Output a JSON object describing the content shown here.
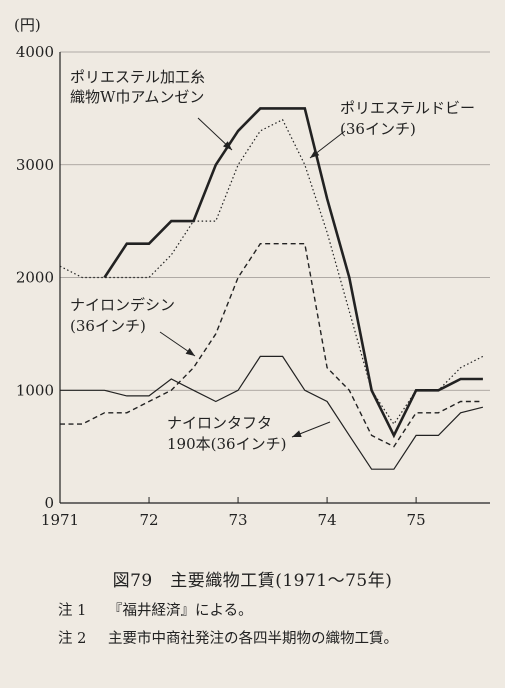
{
  "chart_data": {
    "type": "line",
    "ylabel": "(円)",
    "xlim": [
      1971,
      1975.83
    ],
    "ylim": [
      0,
      4000
    ],
    "yticks": [
      0,
      1000,
      2000,
      3000,
      4000
    ],
    "ytick_labels": [
      "0",
      "1000",
      "2000",
      "3000",
      "4000"
    ],
    "xticks": [
      1971,
      1972,
      1973,
      1974,
      1975
    ],
    "xtick_labels": [
      "1971",
      "72",
      "73",
      "74",
      "75"
    ],
    "grid": "horizontal",
    "series": [
      {
        "name": "ポリエステル加工糸織物W巾アムンゼン",
        "style": "thick-solid",
        "x": [
          1971.5,
          1971.75,
          1972.0,
          1972.25,
          1972.5,
          1972.75,
          1973.0,
          1973.25,
          1973.5,
          1973.75,
          1974.0,
          1974.25,
          1974.5,
          1974.75,
          1975.0,
          1975.25,
          1975.5,
          1975.75
        ],
        "values": [
          2000,
          2300,
          2300,
          2500,
          2500,
          3000,
          3300,
          3500,
          3500,
          3500,
          2700,
          2000,
          1000,
          600,
          1000,
          1000,
          1100,
          1100
        ]
      },
      {
        "name": "ポリエステルドビー(36インチ)",
        "style": "dotted",
        "x": [
          1971.0,
          1971.25,
          1971.5,
          1971.75,
          1972.0,
          1972.25,
          1972.5,
          1972.75,
          1973.0,
          1973.25,
          1973.5,
          1973.75,
          1974.0,
          1974.25,
          1974.5,
          1974.75,
          1975.0,
          1975.25,
          1975.5,
          1975.75
        ],
        "values": [
          2100,
          2000,
          2000,
          2000,
          2000,
          2200,
          2500,
          2500,
          3000,
          3300,
          3400,
          3000,
          2400,
          1700,
          1000,
          700,
          1000,
          1000,
          1200,
          1300
        ]
      },
      {
        "name": "ナイロンデシン(36インチ)",
        "style": "dashed",
        "x": [
          1971.0,
          1971.25,
          1971.5,
          1971.75,
          1972.0,
          1972.25,
          1972.5,
          1972.75,
          1973.0,
          1973.25,
          1973.5,
          1973.75,
          1974.0,
          1974.25,
          1974.5,
          1974.75,
          1975.0,
          1975.25,
          1975.5,
          1975.75
        ],
        "values": [
          700,
          700,
          800,
          800,
          900,
          1000,
          1200,
          1500,
          2000,
          2300,
          2300,
          2300,
          1200,
          1000,
          600,
          500,
          800,
          800,
          900,
          900
        ]
      },
      {
        "name": "ナイロンタフタ190本(36インチ)",
        "style": "thin-solid",
        "x": [
          1971.0,
          1971.25,
          1971.5,
          1971.75,
          1972.0,
          1972.25,
          1972.5,
          1972.75,
          1973.0,
          1973.25,
          1973.5,
          1973.75,
          1974.0,
          1974.25,
          1974.5,
          1974.75,
          1975.0,
          1975.25,
          1975.5,
          1975.75
        ],
        "values": [
          1000,
          1000,
          1000,
          950,
          950,
          1100,
          1000,
          900,
          1000,
          1300,
          1300,
          1000,
          900,
          600,
          300,
          300,
          600,
          600,
          800,
          850
        ]
      }
    ],
    "annotations": [
      {
        "lines": [
          "ポリエステル加工糸",
          "織物W巾アムンゼン"
        ]
      },
      {
        "lines": [
          "ポリエステルドビー",
          "(36インチ)"
        ]
      },
      {
        "lines": [
          "ナイロンデシン",
          "(36インチ)"
        ]
      },
      {
        "lines": [
          "ナイロンタフタ",
          "190本(36インチ)"
        ]
      }
    ]
  },
  "caption": "図79　主要織物工賃(1971〜75年)",
  "notes": [
    {
      "tag": "注 1",
      "text": "『福井経済』による。"
    },
    {
      "tag": "注 2",
      "text": "主要市中商社発注の各四半期物の織物工賃。"
    }
  ]
}
